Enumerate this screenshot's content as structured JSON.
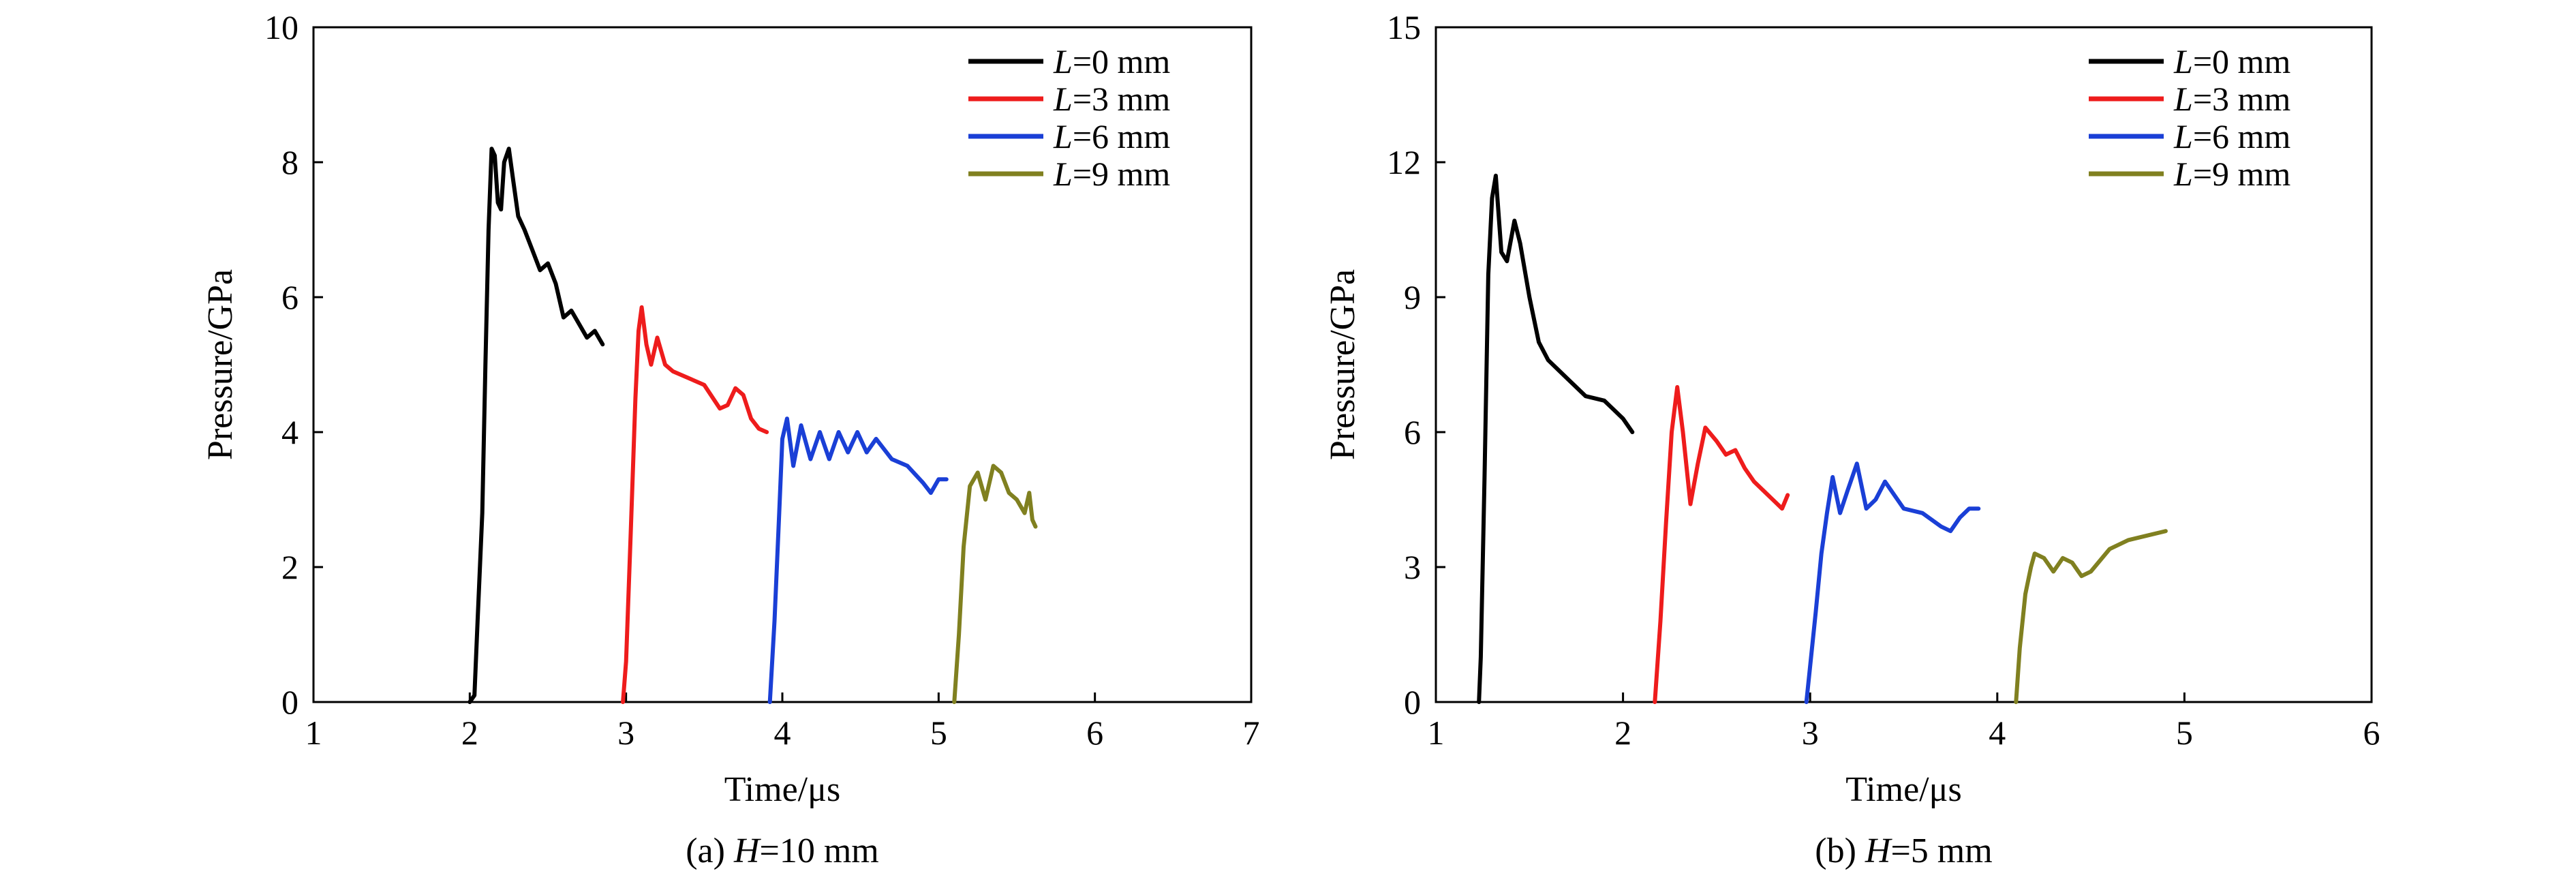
{
  "chart_data": [
    {
      "type": "line",
      "caption": {
        "prefix": "(a) ",
        "var": "H",
        "rest": "=10 mm"
      },
      "xlabel": "Time/μs",
      "ylabel": "Pressure/GPa",
      "xlim": [
        1,
        7
      ],
      "ylim": [
        0,
        10
      ],
      "xticks": [
        "1",
        "2",
        "3",
        "4",
        "5",
        "6",
        "7"
      ],
      "yticks": [
        "0",
        "2",
        "4",
        "6",
        "8",
        "10"
      ],
      "legend_position": "top-right",
      "series": [
        {
          "name": "L=0 mm",
          "var": "L",
          "rest": "=0 mm",
          "color": "#000000",
          "x": [
            2.0,
            2.03,
            2.05,
            2.08,
            2.1,
            2.12,
            2.14,
            2.16,
            2.18,
            2.2,
            2.22,
            2.25,
            2.28,
            2.31,
            2.35,
            2.4,
            2.45,
            2.5,
            2.55,
            2.6,
            2.65,
            2.7,
            2.75,
            2.8,
            2.85
          ],
          "y": [
            0,
            0.1,
            1.2,
            2.8,
            5.0,
            7.0,
            8.2,
            8.1,
            7.4,
            7.3,
            8.0,
            8.2,
            7.7,
            7.2,
            7.0,
            6.7,
            6.4,
            6.5,
            6.2,
            5.7,
            5.8,
            5.6,
            5.4,
            5.5,
            5.3
          ]
        },
        {
          "name": "L=3 mm",
          "var": "L",
          "rest": "=3 mm",
          "color": "#ee1c1c",
          "x": [
            2.98,
            3.0,
            3.03,
            3.06,
            3.08,
            3.1,
            3.13,
            3.16,
            3.2,
            3.25,
            3.3,
            3.4,
            3.5,
            3.6,
            3.65,
            3.7,
            3.75,
            3.8,
            3.85,
            3.9
          ],
          "y": [
            0,
            0.6,
            2.5,
            4.5,
            5.5,
            5.85,
            5.3,
            5.0,
            5.4,
            5.0,
            4.9,
            4.8,
            4.7,
            4.35,
            4.4,
            4.65,
            4.55,
            4.2,
            4.05,
            4.0
          ]
        },
        {
          "name": "L=6 mm",
          "var": "L",
          "rest": "=6 mm",
          "color": "#1a3fd6",
          "x": [
            3.92,
            3.95,
            3.98,
            4.0,
            4.03,
            4.07,
            4.12,
            4.18,
            4.24,
            4.3,
            4.36,
            4.42,
            4.48,
            4.54,
            4.6,
            4.7,
            4.8,
            4.9,
            4.95,
            5.0,
            5.05
          ],
          "y": [
            0,
            1.2,
            2.8,
            3.9,
            4.2,
            3.5,
            4.1,
            3.6,
            4.0,
            3.6,
            4.0,
            3.7,
            4.0,
            3.7,
            3.9,
            3.6,
            3.5,
            3.25,
            3.1,
            3.3,
            3.3
          ]
        },
        {
          "name": "L=9 mm",
          "var": "L",
          "rest": "=9 mm",
          "color": "#808020",
          "x": [
            5.1,
            5.13,
            5.16,
            5.2,
            5.25,
            5.3,
            5.35,
            5.4,
            5.45,
            5.5,
            5.55,
            5.58,
            5.6,
            5.62
          ],
          "y": [
            0,
            1.0,
            2.3,
            3.2,
            3.4,
            3.0,
            3.5,
            3.4,
            3.1,
            3.0,
            2.8,
            3.1,
            2.7,
            2.6
          ]
        }
      ]
    },
    {
      "type": "line",
      "caption": {
        "prefix": "(b) ",
        "var": "H",
        "rest": "=5 mm"
      },
      "xlabel": "Time/μs",
      "ylabel": "Pressure/GPa",
      "xlim": [
        1,
        6
      ],
      "ylim": [
        0,
        15
      ],
      "xticks": [
        "1",
        "2",
        "3",
        "4",
        "5",
        "6"
      ],
      "yticks": [
        "0",
        "3",
        "6",
        "9",
        "12",
        "15"
      ],
      "legend_position": "top-right",
      "series": [
        {
          "name": "L=0 mm",
          "var": "L",
          "rest": "=0 mm",
          "color": "#000000",
          "x": [
            1.23,
            1.24,
            1.26,
            1.28,
            1.3,
            1.32,
            1.35,
            1.38,
            1.42,
            1.45,
            1.5,
            1.55,
            1.6,
            1.7,
            1.8,
            1.9,
            1.95,
            2.0,
            2.05
          ],
          "y": [
            0,
            1.0,
            5.0,
            9.5,
            11.2,
            11.7,
            10.0,
            9.8,
            10.7,
            10.2,
            9.0,
            8.0,
            7.6,
            7.2,
            6.8,
            6.7,
            6.5,
            6.3,
            6.0
          ]
        },
        {
          "name": "L=3 mm",
          "var": "L",
          "rest": "=3 mm",
          "color": "#ee1c1c",
          "x": [
            2.17,
            2.2,
            2.23,
            2.26,
            2.29,
            2.32,
            2.36,
            2.4,
            2.44,
            2.5,
            2.55,
            2.6,
            2.65,
            2.7,
            2.75,
            2.8,
            2.85,
            2.88
          ],
          "y": [
            0,
            1.8,
            4.0,
            6.0,
            7.0,
            6.0,
            4.4,
            5.3,
            6.1,
            5.8,
            5.5,
            5.6,
            5.2,
            4.9,
            4.7,
            4.5,
            4.3,
            4.6
          ]
        },
        {
          "name": "L=6 mm",
          "var": "L",
          "rest": "=6 mm",
          "color": "#1a3fd6",
          "x": [
            2.98,
            3.0,
            3.03,
            3.06,
            3.09,
            3.12,
            3.16,
            3.2,
            3.25,
            3.3,
            3.35,
            3.4,
            3.5,
            3.6,
            3.7,
            3.75,
            3.8,
            3.85,
            3.9
          ],
          "y": [
            0,
            0.8,
            2.0,
            3.3,
            4.2,
            5.0,
            4.2,
            4.7,
            5.3,
            4.3,
            4.5,
            4.9,
            4.3,
            4.2,
            3.9,
            3.8,
            4.1,
            4.3,
            4.3
          ]
        },
        {
          "name": "L=9 mm",
          "var": "L",
          "rest": "=9 mm",
          "color": "#808020",
          "x": [
            4.1,
            4.12,
            4.15,
            4.18,
            4.2,
            4.25,
            4.3,
            4.35,
            4.4,
            4.45,
            4.5,
            4.6,
            4.7,
            4.8,
            4.9
          ],
          "y": [
            0,
            1.2,
            2.4,
            3.0,
            3.3,
            3.2,
            2.9,
            3.2,
            3.1,
            2.8,
            2.9,
            3.4,
            3.6,
            3.7,
            3.8
          ]
        }
      ]
    }
  ]
}
